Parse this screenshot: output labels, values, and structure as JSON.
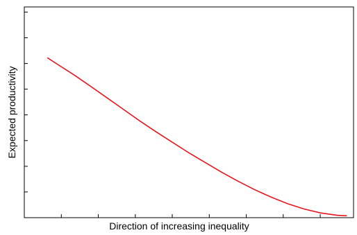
{
  "chart_data": {
    "type": "line",
    "title": "",
    "xlabel": "Direction of increasing inequality",
    "ylabel": "Expected productivity",
    "xlim": [
      0,
      10
    ],
    "ylim": [
      0,
      8
    ],
    "x_ticks_count": 9,
    "y_ticks_count": 8,
    "grid": false,
    "legend": "none",
    "tick_labels_shown": false,
    "series": [
      {
        "color": "#e8141c",
        "x": [
          0.7,
          1.0,
          1.5,
          2.0,
          2.5,
          3.0,
          3.5,
          4.0,
          4.5,
          5.0,
          5.5,
          6.0,
          6.5,
          7.0,
          7.5,
          8.0,
          8.5,
          9.0,
          9.5,
          9.8
        ],
        "y": [
          6.07,
          5.83,
          5.43,
          5.0,
          4.56,
          4.12,
          3.68,
          3.26,
          2.86,
          2.46,
          2.09,
          1.72,
          1.38,
          1.06,
          0.78,
          0.53,
          0.33,
          0.18,
          0.09,
          0.07
        ]
      }
    ]
  }
}
